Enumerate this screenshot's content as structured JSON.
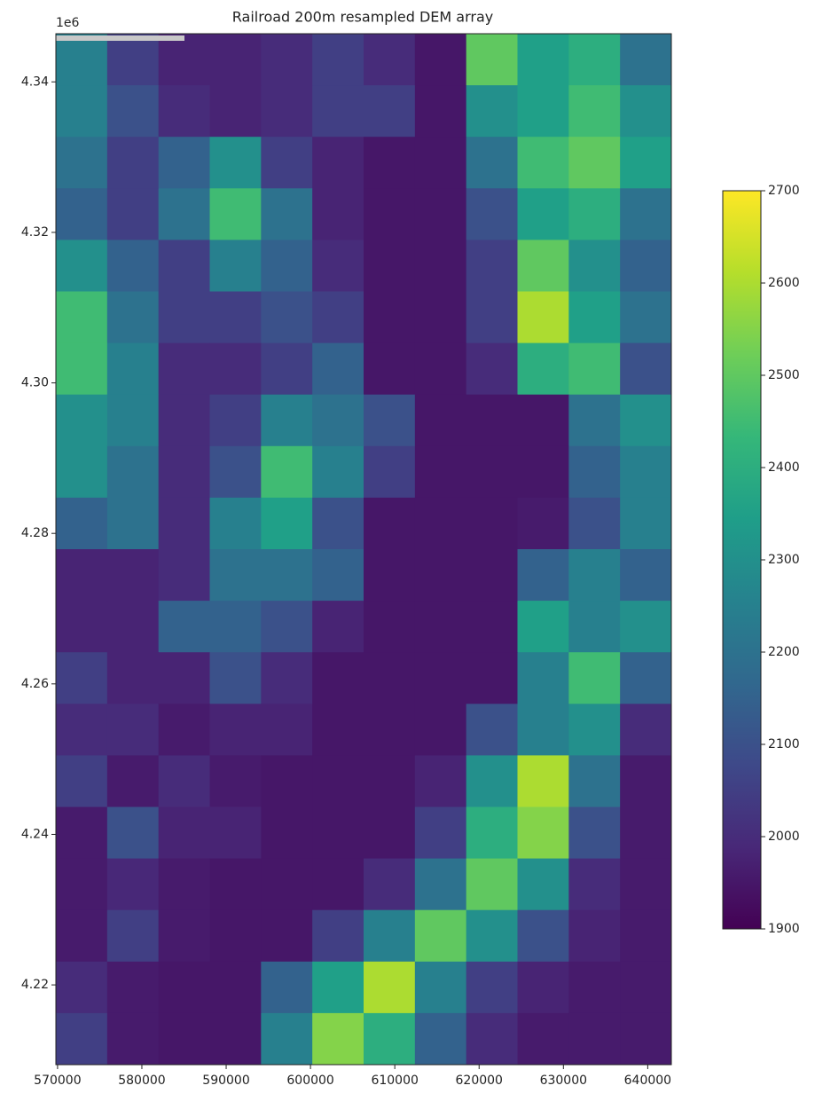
{
  "chart_data": {
    "type": "heatmap",
    "title": "Railroad 200m resampled DEM array",
    "y_offset_label": "1e6",
    "colormap": "viridis",
    "clim": [
      1900,
      2700
    ],
    "cbar_ticks": [
      1900,
      2000,
      2100,
      2200,
      2300,
      2400,
      2500,
      2600,
      2700
    ],
    "xlim": [
      569800,
      642800
    ],
    "xticks": [
      570000,
      580000,
      590000,
      600000,
      610000,
      620000,
      630000,
      640000
    ],
    "ylim": [
      4.2094,
      4.3464
    ],
    "yticks": [
      4.22,
      4.24,
      4.26,
      4.28,
      {
        "value": 4.3,
        "label": "4.30"
      },
      4.32,
      4.34
    ],
    "z": [
      [
        2250,
        2050,
        1980,
        1980,
        2000,
        2050,
        2000,
        1950,
        2500,
        2350,
        2400,
        2200
      ],
      [
        2250,
        2100,
        2000,
        1980,
        2000,
        2050,
        2050,
        1950,
        2300,
        2350,
        2450,
        2300
      ],
      [
        2200,
        2050,
        2150,
        2300,
        2050,
        1980,
        1950,
        1950,
        2200,
        2450,
        2500,
        2350
      ],
      [
        2150,
        2050,
        2200,
        2450,
        2200,
        1980,
        1950,
        1950,
        2100,
        2350,
        2400,
        2200
      ],
      [
        2300,
        2150,
        2050,
        2250,
        2150,
        2000,
        1950,
        1950,
        2050,
        2500,
        2300,
        2150
      ],
      [
        2450,
        2200,
        2050,
        2050,
        2100,
        2050,
        1950,
        1950,
        2050,
        2600,
        2350,
        2200
      ],
      [
        2450,
        2250,
        2000,
        2000,
        2050,
        2150,
        1950,
        1950,
        2000,
        2400,
        2450,
        2100
      ],
      [
        2300,
        2250,
        2000,
        2050,
        2250,
        2200,
        2100,
        1950,
        1950,
        1950,
        2200,
        2300
      ],
      [
        2300,
        2200,
        2000,
        2100,
        2450,
        2250,
        2050,
        1950,
        1950,
        1950,
        2150,
        2250
      ],
      [
        2150,
        2200,
        2000,
        2250,
        2350,
        2100,
        1950,
        1950,
        1950,
        1960,
        2100,
        2250
      ],
      [
        1980,
        1980,
        2000,
        2200,
        2200,
        2150,
        1950,
        1950,
        1950,
        2150,
        2250,
        2150
      ],
      [
        1980,
        1980,
        2150,
        2150,
        2100,
        1980,
        1950,
        1950,
        1950,
        2350,
        2250,
        2300
      ],
      [
        2050,
        1980,
        1980,
        2100,
        2000,
        1950,
        1950,
        1950,
        1950,
        2250,
        2450,
        2150
      ],
      [
        2000,
        2000,
        1960,
        1980,
        1980,
        1950,
        1950,
        1950,
        2100,
        2250,
        2300,
        2000
      ],
      [
        2050,
        1960,
        2000,
        1960,
        1950,
        1950,
        1950,
        1980,
        2300,
        2600,
        2200,
        1960
      ],
      [
        1960,
        2100,
        1980,
        1980,
        1950,
        1950,
        1950,
        2050,
        2400,
        2550,
        2100,
        1960
      ],
      [
        1960,
        1990,
        1960,
        1950,
        1950,
        1950,
        2000,
        2200,
        2500,
        2300,
        2000,
        1960
      ],
      [
        1960,
        2050,
        1960,
        1950,
        1950,
        2050,
        2250,
        2500,
        2300,
        2100,
        1980,
        1960
      ],
      [
        2000,
        1960,
        1950,
        1950,
        2150,
        2350,
        2600,
        2250,
        2050,
        1980,
        1960,
        1960
      ],
      [
        2050,
        1960,
        1950,
        1950,
        2250,
        2550,
        2400,
        2150,
        2000,
        1960,
        1960,
        1960
      ]
    ]
  }
}
